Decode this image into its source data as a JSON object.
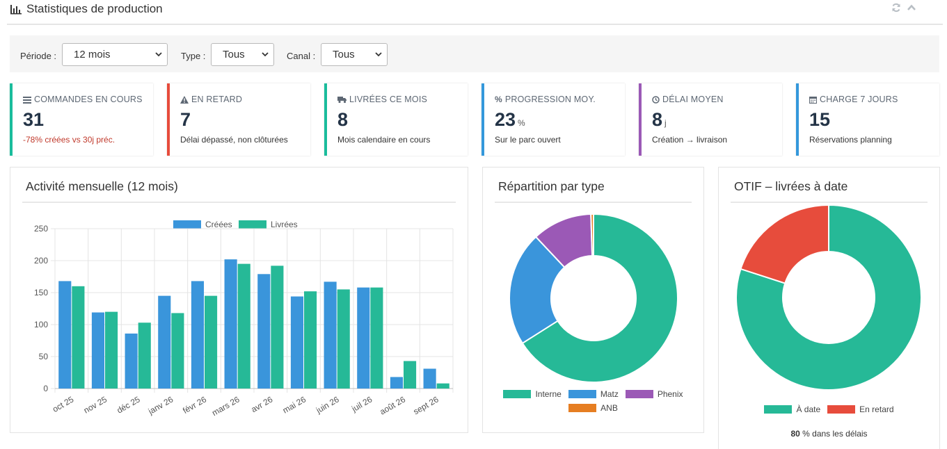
{
  "header": {
    "title": "Statistiques de production",
    "refresh_icon": "refresh-icon",
    "collapse_icon": "chevron-up-icon"
  },
  "filters": {
    "periode": {
      "label": "Période :",
      "value": "12 mois"
    },
    "type": {
      "label": "Type :",
      "value": "Tous"
    },
    "canal": {
      "label": "Canal :",
      "value": "Tous"
    }
  },
  "kpis": [
    {
      "label": "COMMANDES EN COURS",
      "icon": "list-icon",
      "value": "31",
      "unit": "",
      "sub": "-78% créées vs 30j préc.",
      "color": "#1abc9c"
    },
    {
      "label": "EN RETARD",
      "icon": "warning-icon",
      "value": "7",
      "unit": "",
      "sub": "Délai dépassé, non clôturées",
      "color": "#e74c3c"
    },
    {
      "label": "LIVRÉES CE MOIS",
      "icon": "truck-icon",
      "value": "8",
      "unit": "",
      "sub": "Mois calendaire en cours",
      "color": "#1abc9c"
    },
    {
      "label": "PROGRESSION MOY.",
      "icon": "percent-icon",
      "value": "23",
      "unit": "%",
      "sub": "Sur le parc ouvert",
      "color": "#3498db"
    },
    {
      "label": "DÉLAI MOYEN",
      "icon": "clock-icon",
      "value": "8",
      "unit": "j",
      "sub": "Création → livraison",
      "color": "#9b59b6"
    },
    {
      "label": "CHARGE 7 JOURS",
      "icon": "calendar-icon",
      "value": "15",
      "unit": "",
      "sub": "Réservations planning",
      "color": "#3498db"
    }
  ],
  "panels": {
    "activity": {
      "title": "Activité mensuelle (12 mois)"
    },
    "repartition": {
      "title": "Répartition par type"
    },
    "otif": {
      "title": "OTIF – livrées à date",
      "footnote_value": "80",
      "footnote_text": " % dans les délais"
    }
  },
  "chart_data": [
    {
      "type": "bar",
      "title": "Activité mensuelle (12 mois)",
      "categories": [
        "oct 25",
        "nov 25",
        "déc 25",
        "janv 26",
        "févr 26",
        "mars 26",
        "avr 26",
        "mai 26",
        "juin 26",
        "juil 26",
        "août 26",
        "sept 26"
      ],
      "series": [
        {
          "name": "Créées",
          "color": "#3a95db",
          "values": [
            168,
            119,
            86,
            145,
            168,
            202,
            179,
            144,
            167,
            158,
            18,
            31
          ]
        },
        {
          "name": "Livrées",
          "color": "#26b997",
          "values": [
            160,
            120,
            103,
            118,
            145,
            195,
            192,
            152,
            155,
            158,
            43,
            8
          ]
        }
      ],
      "ylim": [
        0,
        250
      ],
      "yticks": [
        0,
        50,
        100,
        150,
        200,
        250
      ],
      "grid": true,
      "legend": "top"
    },
    {
      "type": "pie",
      "title": "Répartition par type",
      "labels": [
        "Interne",
        "Matz",
        "Phenix",
        "ANB"
      ],
      "values": [
        66,
        22,
        11.5,
        0.5
      ],
      "colors": [
        "#26b997",
        "#3a95db",
        "#9b59b6",
        "#e67e22"
      ],
      "donut": true,
      "legend": "bottom"
    },
    {
      "type": "pie",
      "title": "OTIF – livrées à date",
      "labels": [
        "À date",
        "En retard"
      ],
      "values": [
        80,
        20
      ],
      "colors": [
        "#26b997",
        "#e74c3c"
      ],
      "donut": true,
      "legend": "bottom"
    }
  ]
}
